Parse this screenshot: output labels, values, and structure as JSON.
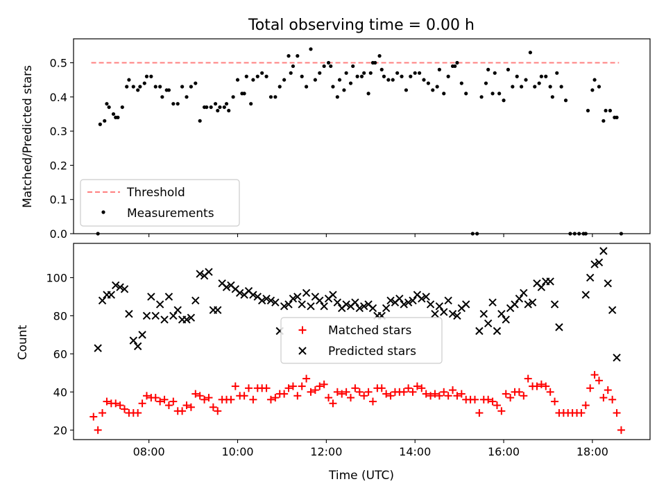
{
  "figure": {
    "title": "Total observing time = 0.00 h"
  },
  "chart_data": [
    {
      "type": "scatter",
      "ylabel": "Matched/Predicted stars",
      "xlim": [
        6.3,
        19.3
      ],
      "ylim": [
        0.0,
        0.57
      ],
      "yticks": [
        0.0,
        0.1,
        0.2,
        0.3,
        0.4,
        0.5
      ],
      "ytick_labels": [
        "0.0",
        "0.1",
        "0.2",
        "0.3",
        "0.4",
        "0.5"
      ],
      "legend_position": "lower-left",
      "threshold": {
        "name": "Threshold",
        "value": 0.5,
        "x_range": [
          6.7,
          18.6
        ],
        "color": "#ff7f7f"
      },
      "series": [
        {
          "name": "Measurements",
          "color": "#000000",
          "points": [
            [
              6.85,
              0.0
            ],
            [
              6.9,
              0.32
            ],
            [
              7.0,
              0.33
            ],
            [
              7.05,
              0.38
            ],
            [
              7.1,
              0.37
            ],
            [
              7.2,
              0.35
            ],
            [
              7.25,
              0.34
            ],
            [
              7.3,
              0.34
            ],
            [
              7.4,
              0.37
            ],
            [
              7.5,
              0.43
            ],
            [
              7.55,
              0.45
            ],
            [
              7.65,
              0.43
            ],
            [
              7.75,
              0.42
            ],
            [
              7.8,
              0.43
            ],
            [
              7.9,
              0.44
            ],
            [
              7.95,
              0.46
            ],
            [
              8.05,
              0.46
            ],
            [
              8.15,
              0.43
            ],
            [
              8.25,
              0.43
            ],
            [
              8.3,
              0.4
            ],
            [
              8.4,
              0.42
            ],
            [
              8.45,
              0.42
            ],
            [
              8.55,
              0.38
            ],
            [
              8.65,
              0.38
            ],
            [
              8.75,
              0.43
            ],
            [
              8.85,
              0.4
            ],
            [
              8.95,
              0.43
            ],
            [
              9.05,
              0.44
            ],
            [
              9.15,
              0.33
            ],
            [
              9.25,
              0.37
            ],
            [
              9.3,
              0.37
            ],
            [
              9.4,
              0.37
            ],
            [
              9.5,
              0.38
            ],
            [
              9.55,
              0.36
            ],
            [
              9.6,
              0.37
            ],
            [
              9.7,
              0.37
            ],
            [
              9.75,
              0.38
            ],
            [
              9.8,
              0.36
            ],
            [
              9.9,
              0.4
            ],
            [
              10.0,
              0.45
            ],
            [
              10.1,
              0.41
            ],
            [
              10.15,
              0.41
            ],
            [
              10.2,
              0.46
            ],
            [
              10.3,
              0.38
            ],
            [
              10.35,
              0.45
            ],
            [
              10.45,
              0.46
            ],
            [
              10.55,
              0.47
            ],
            [
              10.65,
              0.46
            ],
            [
              10.75,
              0.4
            ],
            [
              10.85,
              0.4
            ],
            [
              10.95,
              0.43
            ],
            [
              11.05,
              0.45
            ],
            [
              11.15,
              0.52
            ],
            [
              11.2,
              0.47
            ],
            [
              11.25,
              0.49
            ],
            [
              11.35,
              0.52
            ],
            [
              11.45,
              0.46
            ],
            [
              11.55,
              0.43
            ],
            [
              11.65,
              0.54
            ],
            [
              11.75,
              0.45
            ],
            [
              11.85,
              0.47
            ],
            [
              11.95,
              0.49
            ],
            [
              12.05,
              0.5
            ],
            [
              12.1,
              0.49
            ],
            [
              12.15,
              0.43
            ],
            [
              12.25,
              0.4
            ],
            [
              12.3,
              0.45
            ],
            [
              12.4,
              0.42
            ],
            [
              12.45,
              0.47
            ],
            [
              12.55,
              0.44
            ],
            [
              12.6,
              0.49
            ],
            [
              12.7,
              0.46
            ],
            [
              12.8,
              0.46
            ],
            [
              12.85,
              0.47
            ],
            [
              12.95,
              0.41
            ],
            [
              13.0,
              0.47
            ],
            [
              13.05,
              0.5
            ],
            [
              13.1,
              0.5
            ],
            [
              13.2,
              0.52
            ],
            [
              13.25,
              0.48
            ],
            [
              13.3,
              0.46
            ],
            [
              13.4,
              0.45
            ],
            [
              13.5,
              0.45
            ],
            [
              13.6,
              0.47
            ],
            [
              13.7,
              0.46
            ],
            [
              13.8,
              0.42
            ],
            [
              13.9,
              0.46
            ],
            [
              14.0,
              0.47
            ],
            [
              14.1,
              0.47
            ],
            [
              14.2,
              0.45
            ],
            [
              14.3,
              0.44
            ],
            [
              14.4,
              0.42
            ],
            [
              14.5,
              0.43
            ],
            [
              14.55,
              0.48
            ],
            [
              14.65,
              0.41
            ],
            [
              14.75,
              0.46
            ],
            [
              14.85,
              0.49
            ],
            [
              14.9,
              0.49
            ],
            [
              14.95,
              0.5
            ],
            [
              15.05,
              0.44
            ],
            [
              15.15,
              0.41
            ],
            [
              15.3,
              0.0
            ],
            [
              15.4,
              0.0
            ],
            [
              15.5,
              0.4
            ],
            [
              15.6,
              0.44
            ],
            [
              15.65,
              0.48
            ],
            [
              15.75,
              0.41
            ],
            [
              15.8,
              0.47
            ],
            [
              15.9,
              0.41
            ],
            [
              16.0,
              0.39
            ],
            [
              16.1,
              0.48
            ],
            [
              16.2,
              0.43
            ],
            [
              16.3,
              0.46
            ],
            [
              16.4,
              0.43
            ],
            [
              16.5,
              0.45
            ],
            [
              16.6,
              0.53
            ],
            [
              16.7,
              0.43
            ],
            [
              16.8,
              0.44
            ],
            [
              16.85,
              0.46
            ],
            [
              16.95,
              0.46
            ],
            [
              17.05,
              0.43
            ],
            [
              17.1,
              0.4
            ],
            [
              17.2,
              0.47
            ],
            [
              17.3,
              0.43
            ],
            [
              17.4,
              0.39
            ],
            [
              17.5,
              0.0
            ],
            [
              17.6,
              0.0
            ],
            [
              17.7,
              0.0
            ],
            [
              17.8,
              0.0
            ],
            [
              17.85,
              0.0
            ],
            [
              17.9,
              0.36
            ],
            [
              18.0,
              0.42
            ],
            [
              18.05,
              0.45
            ],
            [
              18.15,
              0.43
            ],
            [
              18.25,
              0.33
            ],
            [
              18.3,
              0.36
            ],
            [
              18.4,
              0.36
            ],
            [
              18.5,
              0.34
            ],
            [
              18.55,
              0.34
            ],
            [
              18.65,
              0.0
            ]
          ]
        }
      ]
    },
    {
      "type": "scatter",
      "xlabel": "Time (UTC)",
      "ylabel": "Count",
      "xlim": [
        6.3,
        19.3
      ],
      "ylim": [
        15,
        118
      ],
      "xticks": [
        8,
        10,
        12,
        14,
        16,
        18
      ],
      "xtick_labels": [
        "08:00",
        "10:00",
        "12:00",
        "14:00",
        "16:00",
        "18:00"
      ],
      "yticks": [
        20,
        40,
        60,
        80,
        100
      ],
      "ytick_labels": [
        "20",
        "40",
        "60",
        "80",
        "100"
      ],
      "legend_position": "center",
      "series": [
        {
          "name": "Matched stars",
          "marker": "plus",
          "color": "#ff0000",
          "x": [
            6.75,
            6.85,
            6.95,
            7.05,
            7.15,
            7.25,
            7.35,
            7.45,
            7.55,
            7.65,
            7.75,
            7.85,
            7.95,
            8.05,
            8.15,
            8.25,
            8.35,
            8.45,
            8.55,
            8.65,
            8.75,
            8.85,
            8.95,
            9.05,
            9.15,
            9.25,
            9.35,
            9.45,
            9.55,
            9.65,
            9.75,
            9.85,
            9.95,
            10.05,
            10.15,
            10.25,
            10.35,
            10.45,
            10.55,
            10.65,
            10.75,
            10.85,
            10.95,
            11.05,
            11.15,
            11.25,
            11.35,
            11.45,
            11.55,
            11.65,
            11.75,
            11.85,
            11.95,
            12.05,
            12.15,
            12.25,
            12.35,
            12.45,
            12.55,
            12.65,
            12.75,
            12.85,
            12.95,
            13.05,
            13.15,
            13.25,
            13.35,
            13.45,
            13.55,
            13.65,
            13.75,
            13.85,
            13.95,
            14.05,
            14.15,
            14.25,
            14.35,
            14.45,
            14.55,
            14.65,
            14.75,
            14.85,
            14.95,
            15.05,
            15.15,
            15.25,
            15.35,
            15.45,
            15.55,
            15.65,
            15.75,
            15.85,
            15.95,
            16.05,
            16.15,
            16.25,
            16.35,
            16.45,
            16.55,
            16.65,
            16.75,
            16.85,
            16.95,
            17.05,
            17.15,
            17.25,
            17.35,
            17.45,
            17.55,
            17.65,
            17.75,
            17.85,
            17.95,
            18.05,
            18.15,
            18.25,
            18.35,
            18.45,
            18.55,
            18.65
          ],
          "values": [
            27,
            20,
            29,
            35,
            34,
            34,
            33,
            31,
            29,
            29,
            29,
            34,
            38,
            37,
            37,
            35,
            36,
            33,
            35,
            30,
            30,
            33,
            32,
            39,
            38,
            36,
            37,
            32,
            30,
            36,
            36,
            36,
            43,
            38,
            38,
            42,
            36,
            42,
            42,
            42,
            36,
            37,
            39,
            39,
            42,
            43,
            38,
            43,
            47,
            40,
            41,
            43,
            44,
            37,
            34,
            40,
            39,
            40,
            37,
            42,
            40,
            38,
            40,
            35,
            42,
            42,
            39,
            38,
            40,
            40,
            40,
            42,
            40,
            43,
            42,
            39,
            38,
            39,
            38,
            40,
            38,
            41,
            38,
            39,
            36,
            36,
            36,
            29,
            36,
            36,
            35,
            33,
            30,
            39,
            37,
            40,
            40,
            38,
            47,
            43,
            43,
            44,
            43,
            40,
            35,
            29,
            29,
            29,
            29,
            29,
            29,
            33,
            42,
            49,
            46,
            37,
            41,
            36,
            29,
            20
          ]
        },
        {
          "name": "Predicted stars",
          "marker": "x",
          "color": "#000000",
          "x": [
            6.85,
            6.95,
            7.05,
            7.15,
            7.25,
            7.35,
            7.45,
            7.55,
            7.65,
            7.75,
            7.85,
            7.95,
            8.05,
            8.15,
            8.25,
            8.35,
            8.45,
            8.55,
            8.65,
            8.75,
            8.85,
            8.95,
            9.05,
            9.15,
            9.25,
            9.35,
            9.45,
            9.55,
            9.65,
            9.75,
            9.85,
            9.95,
            10.05,
            10.15,
            10.25,
            10.35,
            10.45,
            10.55,
            10.65,
            10.75,
            10.85,
            10.95,
            11.05,
            11.15,
            11.25,
            11.35,
            11.45,
            11.55,
            11.65,
            11.75,
            11.85,
            11.95,
            12.05,
            12.15,
            12.25,
            12.35,
            12.45,
            12.55,
            12.65,
            12.75,
            12.85,
            12.95,
            13.05,
            13.15,
            13.25,
            13.35,
            13.45,
            13.55,
            13.65,
            13.75,
            13.85,
            13.95,
            14.05,
            14.15,
            14.25,
            14.35,
            14.45,
            14.55,
            14.65,
            14.75,
            14.85,
            14.95,
            15.05,
            15.15,
            15.45,
            15.55,
            15.65,
            15.75,
            15.85,
            15.95,
            16.05,
            16.15,
            16.25,
            16.35,
            16.45,
            16.55,
            16.65,
            16.75,
            16.85,
            16.95,
            17.05,
            17.15,
            17.25,
            17.85,
            17.95,
            18.05,
            18.15,
            18.25,
            18.35,
            18.45,
            18.55
          ],
          "values": [
            63,
            88,
            91,
            91,
            96,
            95,
            94,
            81,
            67,
            64,
            70,
            80,
            90,
            80,
            86,
            78,
            90,
            80,
            83,
            78,
            78,
            79,
            88,
            102,
            101,
            103,
            83,
            83,
            97,
            95,
            96,
            94,
            92,
            91,
            93,
            91,
            90,
            88,
            89,
            88,
            87,
            72,
            85,
            86,
            89,
            90,
            86,
            92,
            85,
            90,
            88,
            85,
            89,
            91,
            87,
            84,
            86,
            85,
            87,
            84,
            85,
            86,
            84,
            80,
            80,
            84,
            88,
            87,
            89,
            86,
            87,
            88,
            91,
            89,
            90,
            86,
            81,
            85,
            82,
            88,
            81,
            80,
            84,
            86,
            72,
            81,
            76,
            87,
            72,
            81,
            78,
            84,
            86,
            89,
            92,
            86,
            87,
            97,
            95,
            98,
            98,
            86,
            74,
            91,
            100,
            107,
            108,
            114,
            97,
            83,
            58
          ]
        }
      ]
    }
  ]
}
